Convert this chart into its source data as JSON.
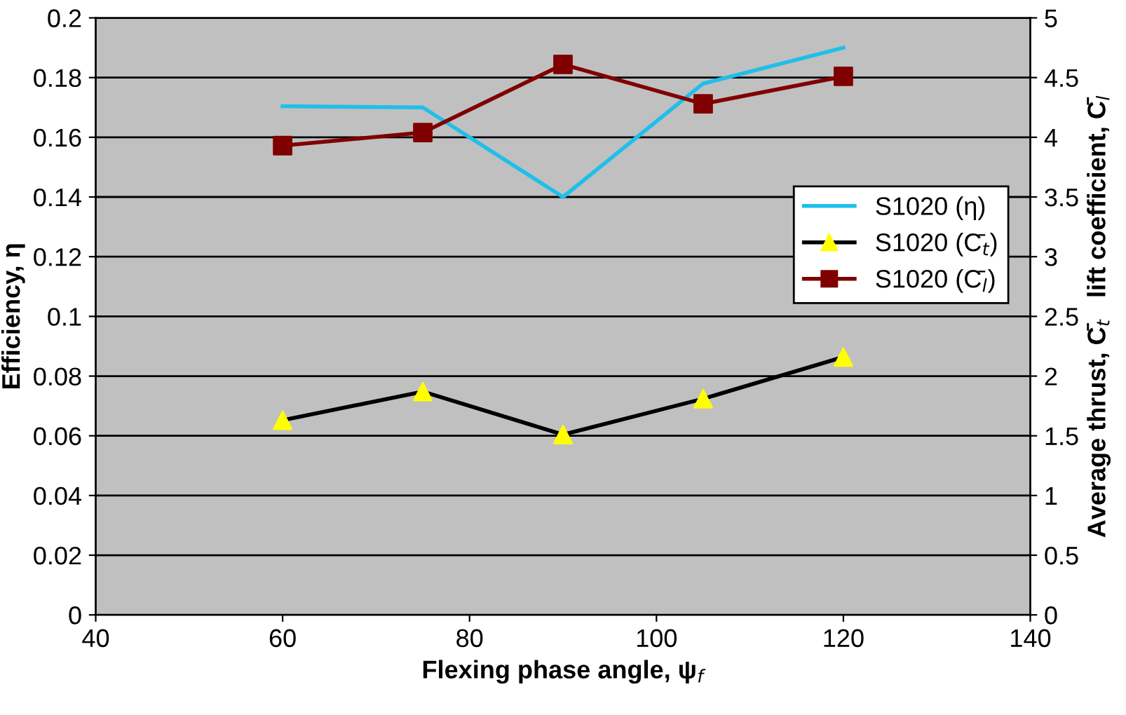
{
  "chart_data": {
    "type": "line",
    "xlabel": "Flexing phase angle, ψ$_{f}$",
    "ylabel": "Efficiency, η",
    "y2label": "Average thrust, C̄$_{t}$   lift coefficient, C̄$_{l}$",
    "x": [
      60,
      75,
      90,
      105,
      120
    ],
    "series": [
      {
        "name": "S1020 (η)",
        "color": "#1fbfea",
        "marker": "none",
        "values": [
          0.1704,
          0.17,
          0.14,
          0.178,
          0.19
        ]
      },
      {
        "name": "S1020 (C̄$_{t}$)",
        "color": "#000000",
        "colors": [
          "#ffff00",
          "#ffff00",
          "#ffff00",
          "#ffff00",
          "#ffff00"
        ],
        "marker": "triangle",
        "axis": "y2",
        "values": [
          1.63,
          1.87,
          1.51,
          1.81,
          2.16
        ]
      },
      {
        "name": "S1020 (C̄$_{l}$)",
        "color": "#800000",
        "marker": "square",
        "axis": "y2",
        "values": [
          3.93,
          4.04,
          4.61,
          4.28,
          4.51
        ]
      }
    ],
    "xlim": [
      40,
      140
    ],
    "xticks": [
      40,
      60,
      80,
      100,
      120,
      140
    ],
    "ylim": [
      0,
      0.2
    ],
    "yticks": [
      0,
      0.02,
      0.04,
      0.06,
      0.08,
      0.1,
      0.12,
      0.14,
      0.16,
      0.18,
      0.2
    ],
    "y2lim": [
      0,
      5
    ],
    "y2ticks": [
      0,
      0.5,
      1,
      1.5,
      2,
      2.5,
      3,
      3.5,
      4,
      4.5,
      5
    ],
    "grid": "y",
    "legend": "right"
  }
}
